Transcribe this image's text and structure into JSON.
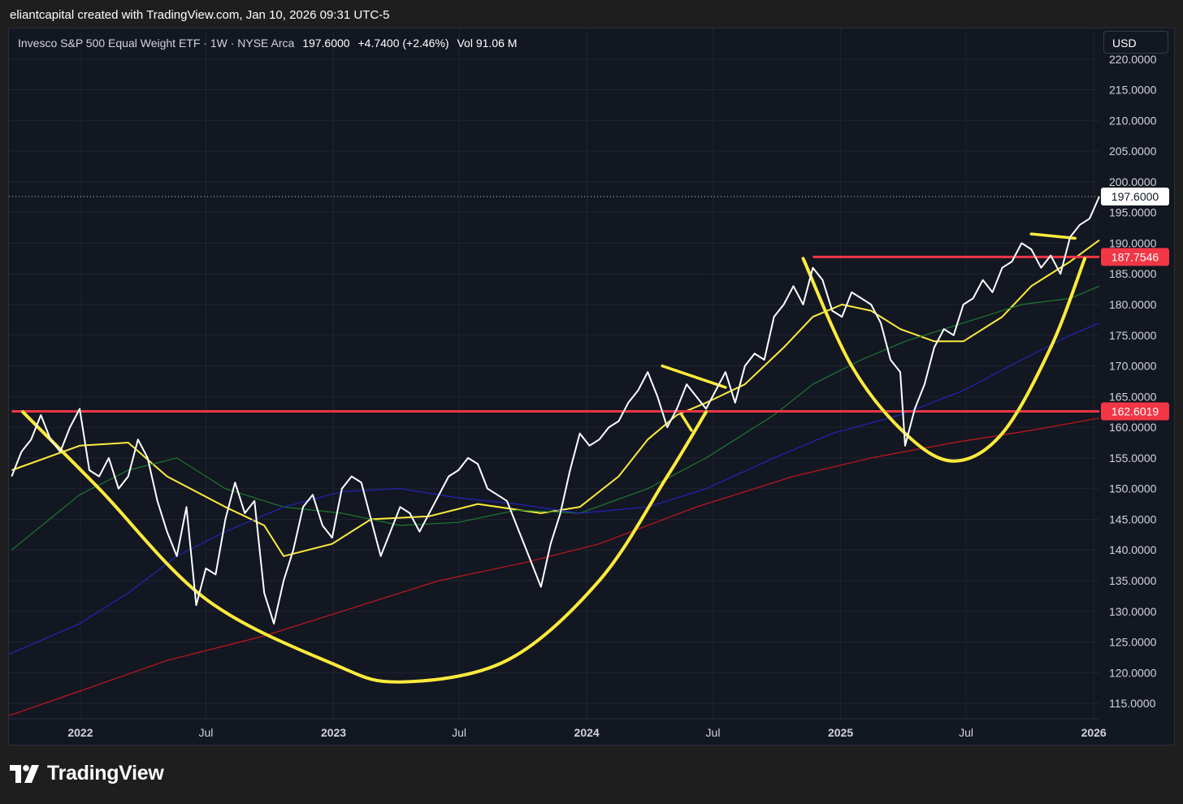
{
  "caption": "eliantcapital created with TradingView.com, Jan 10, 2026 09:31 UTC-5",
  "legend": {
    "symbol": "Invesco S&P 500 Equal Weight ETF · 1W · NYSE Arca",
    "last": "197.6000",
    "change": "+4.7400 (+2.46%)",
    "volume": "Vol 91.06 M"
  },
  "currency": "USD",
  "brand": "TradingView",
  "colors": {
    "background": "#131722",
    "price": "#ffffff",
    "ma_yellow": "#ffeb3b",
    "ma_green": "#1b7a2f",
    "ma_blue": "#2424b8",
    "ma_red": "#c4161c",
    "resistance": "#f23645",
    "drawing": "#ffeb3b",
    "last_price_label": "#ffffff"
  },
  "chart_data": {
    "type": "line",
    "interval": "1W",
    "y_axis": {
      "min": 112.5,
      "max": 225,
      "ticks": [
        "115.0000",
        "120.0000",
        "125.0000",
        "130.0000",
        "135.0000",
        "140.0000",
        "145.0000",
        "150.0000",
        "155.0000",
        "160.0000",
        "165.0000",
        "170.0000",
        "175.0000",
        "180.0000",
        "185.0000",
        "190.0000",
        "195.0000",
        "200.0000",
        "205.0000",
        "210.0000",
        "215.0000",
        "220.0000"
      ],
      "position": "right"
    },
    "x_axis": {
      "min": "2021-09-20",
      "max": "2026-01-09",
      "ticks": [
        {
          "label": "2022",
          "date": "2022-01-01",
          "bold": true
        },
        {
          "label": "Jul",
          "date": "2022-07-01",
          "bold": false
        },
        {
          "label": "2023",
          "date": "2023-01-01",
          "bold": true
        },
        {
          "label": "Jul",
          "date": "2023-07-01",
          "bold": false
        },
        {
          "label": "2024",
          "date": "2024-01-01",
          "bold": true
        },
        {
          "label": "Jul",
          "date": "2024-07-01",
          "bold": false
        },
        {
          "label": "2025",
          "date": "2025-01-01",
          "bold": true
        },
        {
          "label": "Jul",
          "date": "2025-07-01",
          "bold": false
        },
        {
          "label": "2026",
          "date": "2026-01-01",
          "bold": true
        }
      ]
    },
    "grid": true,
    "last_price": {
      "value": 197.6,
      "label": "197.6000"
    },
    "price_series": [
      [
        "2021-09-24",
        152
      ],
      [
        "2021-10-08",
        156
      ],
      [
        "2021-10-22",
        158
      ],
      [
        "2021-11-05",
        162
      ],
      [
        "2021-11-19",
        158
      ],
      [
        "2021-12-03",
        156
      ],
      [
        "2021-12-17",
        160
      ],
      [
        "2021-12-31",
        163
      ],
      [
        "2022-01-14",
        153
      ],
      [
        "2022-01-28",
        152
      ],
      [
        "2022-02-11",
        155
      ],
      [
        "2022-02-25",
        150
      ],
      [
        "2022-03-11",
        152
      ],
      [
        "2022-03-25",
        158
      ],
      [
        "2022-04-08",
        155
      ],
      [
        "2022-04-22",
        148
      ],
      [
        "2022-05-06",
        143
      ],
      [
        "2022-05-20",
        139
      ],
      [
        "2022-06-03",
        147
      ],
      [
        "2022-06-17",
        131
      ],
      [
        "2022-07-01",
        137
      ],
      [
        "2022-07-15",
        136
      ],
      [
        "2022-07-29",
        145
      ],
      [
        "2022-08-12",
        151
      ],
      [
        "2022-08-26",
        146
      ],
      [
        "2022-09-09",
        148
      ],
      [
        "2022-09-23",
        133
      ],
      [
        "2022-10-07",
        128
      ],
      [
        "2022-10-21",
        135
      ],
      [
        "2022-11-04",
        140
      ],
      [
        "2022-11-18",
        147
      ],
      [
        "2022-12-02",
        149
      ],
      [
        "2022-12-16",
        144
      ],
      [
        "2022-12-30",
        142
      ],
      [
        "2023-01-13",
        150
      ],
      [
        "2023-01-27",
        152
      ],
      [
        "2023-02-10",
        151
      ],
      [
        "2023-02-24",
        145
      ],
      [
        "2023-03-10",
        139
      ],
      [
        "2023-03-24",
        143
      ],
      [
        "2023-04-07",
        147
      ],
      [
        "2023-04-21",
        146
      ],
      [
        "2023-05-05",
        143
      ],
      [
        "2023-05-19",
        146
      ],
      [
        "2023-06-02",
        149
      ],
      [
        "2023-06-16",
        152
      ],
      [
        "2023-06-30",
        153
      ],
      [
        "2023-07-14",
        155
      ],
      [
        "2023-07-28",
        154
      ],
      [
        "2023-08-11",
        150
      ],
      [
        "2023-08-25",
        149
      ],
      [
        "2023-09-08",
        148
      ],
      [
        "2023-09-22",
        144
      ],
      [
        "2023-10-06",
        140
      ],
      [
        "2023-10-27",
        134
      ],
      [
        "2023-11-10",
        141
      ],
      [
        "2023-11-24",
        146
      ],
      [
        "2023-12-08",
        153
      ],
      [
        "2023-12-22",
        159
      ],
      [
        "2024-01-05",
        157
      ],
      [
        "2024-01-19",
        158
      ],
      [
        "2024-02-02",
        160
      ],
      [
        "2024-02-16",
        161
      ],
      [
        "2024-03-01",
        164
      ],
      [
        "2024-03-15",
        166
      ],
      [
        "2024-03-29",
        169
      ],
      [
        "2024-04-12",
        165
      ],
      [
        "2024-04-26",
        160
      ],
      [
        "2024-05-10",
        163
      ],
      [
        "2024-05-24",
        167
      ],
      [
        "2024-06-07",
        165
      ],
      [
        "2024-06-21",
        163
      ],
      [
        "2024-07-05",
        166
      ],
      [
        "2024-07-19",
        169
      ],
      [
        "2024-08-02",
        164
      ],
      [
        "2024-08-16",
        170
      ],
      [
        "2024-08-30",
        172
      ],
      [
        "2024-09-13",
        171
      ],
      [
        "2024-09-27",
        178
      ],
      [
        "2024-10-11",
        180
      ],
      [
        "2024-10-25",
        183
      ],
      [
        "2024-11-08",
        180
      ],
      [
        "2024-11-22",
        186
      ],
      [
        "2024-12-06",
        184
      ],
      [
        "2024-12-20",
        179
      ],
      [
        "2025-01-03",
        178
      ],
      [
        "2025-01-17",
        182
      ],
      [
        "2025-01-31",
        181
      ],
      [
        "2025-02-14",
        180
      ],
      [
        "2025-02-28",
        177
      ],
      [
        "2025-03-14",
        171
      ],
      [
        "2025-03-28",
        169
      ],
      [
        "2025-04-04",
        157
      ],
      [
        "2025-04-18",
        163
      ],
      [
        "2025-05-02",
        167
      ],
      [
        "2025-05-16",
        173
      ],
      [
        "2025-05-30",
        176
      ],
      [
        "2025-06-13",
        175
      ],
      [
        "2025-06-27",
        180
      ],
      [
        "2025-07-11",
        181
      ],
      [
        "2025-07-25",
        184
      ],
      [
        "2025-08-08",
        182
      ],
      [
        "2025-08-22",
        186
      ],
      [
        "2025-09-05",
        187
      ],
      [
        "2025-09-19",
        190
      ],
      [
        "2025-10-03",
        189
      ],
      [
        "2025-10-17",
        186
      ],
      [
        "2025-10-31",
        188
      ],
      [
        "2025-11-14",
        185
      ],
      [
        "2025-11-28",
        191
      ],
      [
        "2025-12-12",
        193
      ],
      [
        "2025-12-26",
        194
      ],
      [
        "2026-01-09",
        197.6
      ]
    ],
    "moving_averages": [
      {
        "color": "yellow",
        "points": [
          [
            "2021-09-24",
            153
          ],
          [
            "2021-12-31",
            157
          ],
          [
            "2022-03-11",
            157.5
          ],
          [
            "2022-05-06",
            152
          ],
          [
            "2022-07-29",
            147
          ],
          [
            "2022-09-23",
            144
          ],
          [
            "2022-10-21",
            139
          ],
          [
            "2022-12-30",
            141
          ],
          [
            "2023-02-24",
            145
          ],
          [
            "2023-05-19",
            145.5
          ],
          [
            "2023-07-28",
            147.5
          ],
          [
            "2023-10-27",
            146
          ],
          [
            "2023-12-22",
            147
          ],
          [
            "2024-02-16",
            152
          ],
          [
            "2024-03-29",
            158
          ],
          [
            "2024-05-10",
            162
          ],
          [
            "2024-06-21",
            164
          ],
          [
            "2024-08-16",
            167
          ],
          [
            "2024-10-11",
            173
          ],
          [
            "2024-11-22",
            178
          ],
          [
            "2025-01-03",
            180
          ],
          [
            "2025-02-14",
            179
          ],
          [
            "2025-03-28",
            176
          ],
          [
            "2025-05-16",
            174
          ],
          [
            "2025-06-27",
            174
          ],
          [
            "2025-08-22",
            178
          ],
          [
            "2025-10-03",
            183
          ],
          [
            "2025-11-28",
            187
          ],
          [
            "2026-01-09",
            190.5
          ]
        ]
      },
      {
        "color": "green",
        "points": [
          [
            "2021-09-24",
            140
          ],
          [
            "2021-12-31",
            149
          ],
          [
            "2022-03-11",
            153
          ],
          [
            "2022-05-20",
            155
          ],
          [
            "2022-07-29",
            150
          ],
          [
            "2022-10-21",
            147
          ],
          [
            "2023-01-13",
            146
          ],
          [
            "2023-04-07",
            144
          ],
          [
            "2023-06-30",
            144.5
          ],
          [
            "2023-09-22",
            146.5
          ],
          [
            "2023-12-22",
            146
          ],
          [
            "2024-03-29",
            150
          ],
          [
            "2024-06-21",
            155
          ],
          [
            "2024-09-27",
            162
          ],
          [
            "2024-11-22",
            167
          ],
          [
            "2025-01-31",
            171
          ],
          [
            "2025-04-04",
            174
          ],
          [
            "2025-06-27",
            177
          ],
          [
            "2025-09-19",
            180
          ],
          [
            "2025-11-28",
            181
          ],
          [
            "2026-01-09",
            183
          ]
        ]
      },
      {
        "color": "blue",
        "points": [
          [
            "2021-09-20",
            123
          ],
          [
            "2021-12-31",
            128
          ],
          [
            "2022-03-11",
            133
          ],
          [
            "2022-05-20",
            139
          ],
          [
            "2022-07-29",
            143
          ],
          [
            "2022-10-21",
            147
          ],
          [
            "2023-01-13",
            149.5
          ],
          [
            "2023-04-07",
            150
          ],
          [
            "2023-06-30",
            148.5
          ],
          [
            "2023-09-22",
            147.5
          ],
          [
            "2023-12-22",
            146
          ],
          [
            "2024-03-29",
            147
          ],
          [
            "2024-06-21",
            150
          ],
          [
            "2024-09-27",
            155
          ],
          [
            "2024-12-20",
            159
          ],
          [
            "2025-03-28",
            162
          ],
          [
            "2025-06-27",
            166
          ],
          [
            "2025-09-19",
            171
          ],
          [
            "2025-11-28",
            175
          ],
          [
            "2026-01-09",
            177
          ]
        ]
      },
      {
        "color": "red",
        "points": [
          [
            "2021-09-20",
            113
          ],
          [
            "2021-12-31",
            117
          ],
          [
            "2022-05-06",
            122
          ],
          [
            "2022-09-23",
            126
          ],
          [
            "2023-01-13",
            130
          ],
          [
            "2023-06-02",
            135
          ],
          [
            "2023-10-06",
            138
          ],
          [
            "2024-01-19",
            141
          ],
          [
            "2024-06-07",
            147
          ],
          [
            "2024-10-25",
            152
          ],
          [
            "2025-02-14",
            155
          ],
          [
            "2025-06-13",
            157.5
          ],
          [
            "2025-10-03",
            159.5
          ],
          [
            "2026-01-09",
            161.5
          ]
        ]
      }
    ],
    "resistance_lines": [
      {
        "value": 162.6019,
        "label": "162.6019",
        "from": "2021-09-24",
        "to": "2026-01-09"
      },
      {
        "value": 187.7546,
        "label": "187.7546",
        "from": "2024-11-22",
        "to": "2026-01-09"
      }
    ],
    "drawings": [
      {
        "kind": "arc",
        "points": [
          [
            "2021-10-10",
            162.5
          ],
          [
            "2022-01-28",
            150
          ],
          [
            "2022-07-01",
            132
          ],
          [
            "2022-12-30",
            121.5
          ],
          [
            "2023-04-07",
            118.5
          ],
          [
            "2023-09-08",
            122
          ],
          [
            "2024-01-19",
            135
          ],
          [
            "2024-04-26",
            152
          ],
          [
            "2024-06-21",
            162.5
          ]
        ]
      },
      {
        "kind": "arc",
        "points": [
          [
            "2024-11-08",
            187.5
          ],
          [
            "2025-01-17",
            170
          ],
          [
            "2025-04-04",
            159
          ],
          [
            "2025-06-13",
            154.5
          ],
          [
            "2025-08-22",
            159
          ],
          [
            "2025-10-31",
            173
          ],
          [
            "2025-12-19",
            187.5
          ]
        ]
      },
      {
        "kind": "segment",
        "points": [
          [
            "2024-04-19",
            170
          ],
          [
            "2024-07-19",
            166.5
          ]
        ]
      },
      {
        "kind": "segment",
        "points": [
          [
            "2025-10-03",
            191.5
          ],
          [
            "2025-12-05",
            190.8
          ]
        ]
      },
      {
        "kind": "segment",
        "points": [
          [
            "2024-05-17",
            162
          ],
          [
            "2024-05-31",
            159.5
          ]
        ]
      }
    ]
  }
}
